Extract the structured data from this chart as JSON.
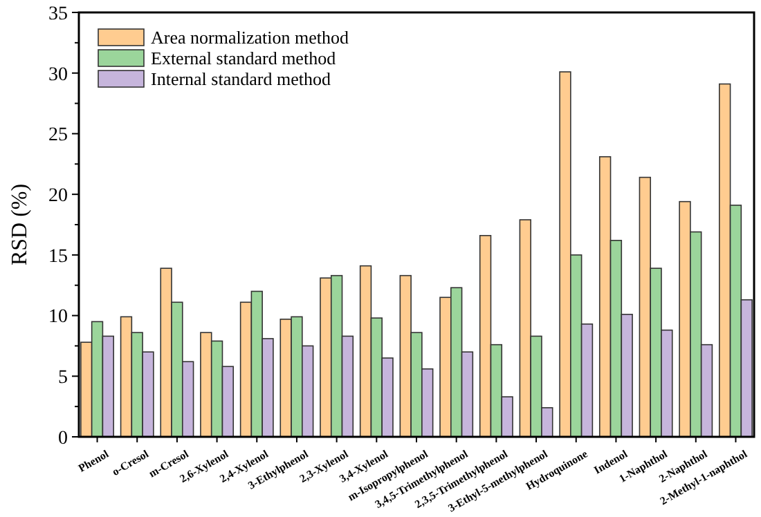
{
  "chart_data": {
    "type": "bar",
    "ylabel": "RSD (%)",
    "categories": [
      "Phenol",
      "o-Cresol",
      "m-Cresol",
      "2,6-Xylenol",
      "2,4-Xylenol",
      "3-Ethylphenol",
      "2,3-Xylenol",
      "3,4-Xylenol",
      "m-Isopropylphenol",
      "3,4,5-Trimethylphenol",
      "2,3,5-Trimethylphenol",
      "3-Ethyl-5-methylphenol",
      "Hydroquinone",
      "Indenol",
      "1-Naphthol",
      "2-Naphthol",
      "2-Methyl-1-naphthol"
    ],
    "series": [
      {
        "name": "Area normalization method",
        "color": "#ffcc90",
        "values": [
          7.8,
          9.9,
          13.9,
          8.6,
          11.1,
          9.7,
          13.1,
          14.1,
          13.3,
          11.5,
          16.6,
          17.9,
          30.1,
          23.1,
          21.4,
          19.4,
          29.1
        ]
      },
      {
        "name": "External standard method",
        "color": "#9bd59b",
        "values": [
          9.5,
          8.6,
          11.1,
          7.9,
          12.0,
          9.9,
          13.3,
          9.8,
          8.6,
          12.3,
          7.6,
          8.3,
          15.0,
          16.2,
          13.9,
          16.9,
          19.1
        ]
      },
      {
        "name": "Internal standard method",
        "color": "#c6b5dc",
        "values": [
          8.3,
          7.0,
          6.2,
          5.8,
          8.1,
          7.5,
          8.3,
          6.5,
          5.6,
          7.0,
          3.3,
          2.4,
          9.3,
          10.1,
          8.8,
          7.6,
          11.3
        ]
      }
    ],
    "ylim": [
      0,
      35
    ],
    "yticks": [
      0,
      5,
      10,
      15,
      20,
      25,
      30,
      35
    ],
    "legend": "top left",
    "grid": false
  }
}
